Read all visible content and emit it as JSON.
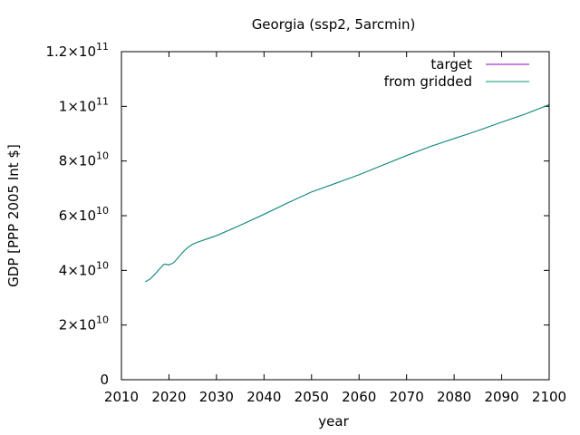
{
  "chart_data": {
    "type": "line",
    "title": "Georgia (ssp2, 5arcmin)",
    "xlabel": "year",
    "ylabel": "GDP [PPP 2005 Int $]",
    "xlim": [
      2010,
      2100
    ],
    "ylim": [
      0,
      120000000000
    ],
    "x_ticks": [
      "2010",
      "2020",
      "2030",
      "2040",
      "2050",
      "2060",
      "2070",
      "2080",
      "2090",
      "2100"
    ],
    "y_ticks": [
      {
        "value": 0,
        "mantissa": "0",
        "exponent": ""
      },
      {
        "value": 20000000000,
        "mantissa": "2×10",
        "exponent": "10"
      },
      {
        "value": 40000000000,
        "mantissa": "4×10",
        "exponent": "10"
      },
      {
        "value": 60000000000,
        "mantissa": "6×10",
        "exponent": "10"
      },
      {
        "value": 80000000000,
        "mantissa": "8×10",
        "exponent": "10"
      },
      {
        "value": 100000000000,
        "mantissa": "1×10",
        "exponent": "11"
      },
      {
        "value": 120000000000,
        "mantissa": "1.2×10",
        "exponent": "11"
      }
    ],
    "legend_position": "top-right",
    "grid": false,
    "series": [
      {
        "name": "target",
        "color": "#9400d3",
        "x": [
          2015,
          2016,
          2017,
          2018,
          2019,
          2020,
          2021,
          2022,
          2023,
          2024,
          2025,
          2026,
          2028,
          2030,
          2035,
          2040,
          2045,
          2050,
          2055,
          2060,
          2065,
          2070,
          2075,
          2080,
          2085,
          2090,
          2095,
          2100
        ],
        "y": [
          35800000000,
          36800000000,
          38500000000,
          40500000000,
          42300000000,
          42000000000,
          42800000000,
          44800000000,
          46800000000,
          48400000000,
          49600000000,
          50300000000,
          51500000000,
          52700000000,
          56500000000,
          60500000000,
          64700000000,
          68700000000,
          71800000000,
          75000000000,
          78500000000,
          82000000000,
          85300000000,
          88200000000,
          91100000000,
          94200000000,
          97200000000,
          100600000000
        ]
      },
      {
        "name": "from gridded",
        "color": "#009e73",
        "x": [
          2015,
          2016,
          2017,
          2018,
          2019,
          2020,
          2021,
          2022,
          2023,
          2024,
          2025,
          2026,
          2028,
          2030,
          2035,
          2040,
          2045,
          2050,
          2055,
          2060,
          2065,
          2070,
          2075,
          2080,
          2085,
          2090,
          2095,
          2100
        ],
        "y": [
          35800000000,
          36800000000,
          38500000000,
          40500000000,
          42300000000,
          42000000000,
          42800000000,
          44800000000,
          46800000000,
          48400000000,
          49600000000,
          50300000000,
          51500000000,
          52700000000,
          56500000000,
          60500000000,
          64700000000,
          68700000000,
          71800000000,
          75000000000,
          78500000000,
          82000000000,
          85300000000,
          88200000000,
          91100000000,
          94200000000,
          97200000000,
          100600000000
        ]
      }
    ]
  }
}
